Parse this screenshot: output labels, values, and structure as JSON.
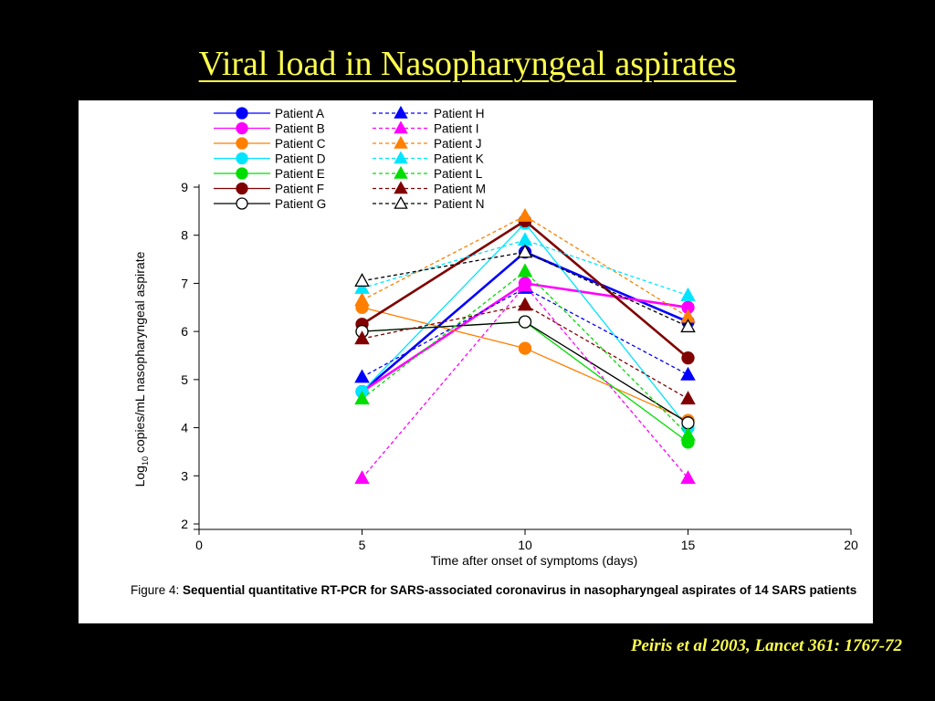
{
  "slide": {
    "title": "Viral load in Nasopharyngeal aspirates",
    "citation": "Peiris et al 2003, Lancet 361: 1767-72",
    "title_color": "#ffff4d"
  },
  "caption": {
    "prefix": "Figure 4: ",
    "text": "Sequential quantitative RT-PCR for SARS-associated coronavirus in nasopharyngeal aspirates of 14 SARS patients"
  },
  "chart_data": {
    "type": "line",
    "title": "",
    "xlabel": "Time after onset of symptoms (days)",
    "ylabel_parts": [
      "Log",
      "10",
      " copies/mL nasopharyngeal aspirate"
    ],
    "xlim": [
      0,
      20
    ],
    "ylim": [
      2,
      9
    ],
    "xticks": [
      0,
      5,
      10,
      15,
      20
    ],
    "yticks": [
      2,
      3,
      4,
      5,
      6,
      7,
      8,
      9
    ],
    "grid": false,
    "legend_position": "top-left",
    "x": [
      5,
      10,
      15
    ],
    "series": [
      {
        "name": "Patient A",
        "values": [
          4.75,
          7.65,
          6.2
        ],
        "color": "#0000ff",
        "marker": "circle",
        "dashed": false,
        "filled": true
      },
      {
        "name": "Patient B",
        "values": [
          4.75,
          7.0,
          6.5
        ],
        "color": "#ff00ff",
        "marker": "circle",
        "dashed": false,
        "filled": true
      },
      {
        "name": "Patient C",
        "values": [
          6.5,
          5.65,
          4.15
        ],
        "color": "#ff7f00",
        "marker": "circle",
        "dashed": false,
        "filled": true
      },
      {
        "name": "Patient D",
        "values": [
          4.75,
          8.25,
          4.0
        ],
        "color": "#00e5ff",
        "marker": "circle",
        "dashed": false,
        "filled": true
      },
      {
        "name": "Patient E",
        "values": [
          6.0,
          6.2,
          3.7
        ],
        "color": "#00dd00",
        "marker": "circle",
        "dashed": false,
        "filled": true
      },
      {
        "name": "Patient F",
        "values": [
          6.15,
          8.3,
          5.45
        ],
        "color": "#800000",
        "marker": "circle",
        "dashed": false,
        "filled": true
      },
      {
        "name": "Patient G",
        "values": [
          6.0,
          6.2,
          4.1
        ],
        "color": "#000000",
        "marker": "circle",
        "dashed": false,
        "filled": false
      },
      {
        "name": "Patient H",
        "values": [
          5.05,
          6.9,
          5.1
        ],
        "color": "#0000ff",
        "marker": "triangle",
        "dashed": true,
        "filled": true
      },
      {
        "name": "Patient I",
        "values": [
          2.95,
          6.95,
          2.95
        ],
        "color": "#ff00ff",
        "marker": "triangle",
        "dashed": true,
        "filled": true
      },
      {
        "name": "Patient J",
        "values": [
          6.65,
          8.4,
          6.3
        ],
        "color": "#ff7f00",
        "marker": "triangle",
        "dashed": true,
        "filled": true
      },
      {
        "name": "Patient K",
        "values": [
          6.9,
          7.9,
          6.75
        ],
        "color": "#00e5ff",
        "marker": "triangle",
        "dashed": true,
        "filled": true
      },
      {
        "name": "Patient L",
        "values": [
          4.6,
          7.25,
          3.85
        ],
        "color": "#00dd00",
        "marker": "triangle",
        "dashed": true,
        "filled": true
      },
      {
        "name": "Patient M",
        "values": [
          5.85,
          6.55,
          4.6
        ],
        "color": "#800000",
        "marker": "triangle",
        "dashed": true,
        "filled": true
      },
      {
        "name": "Patient N",
        "values": [
          7.05,
          7.65,
          6.1
        ],
        "color": "#000000",
        "marker": "triangle",
        "dashed": true,
        "filled": false
      }
    ]
  }
}
